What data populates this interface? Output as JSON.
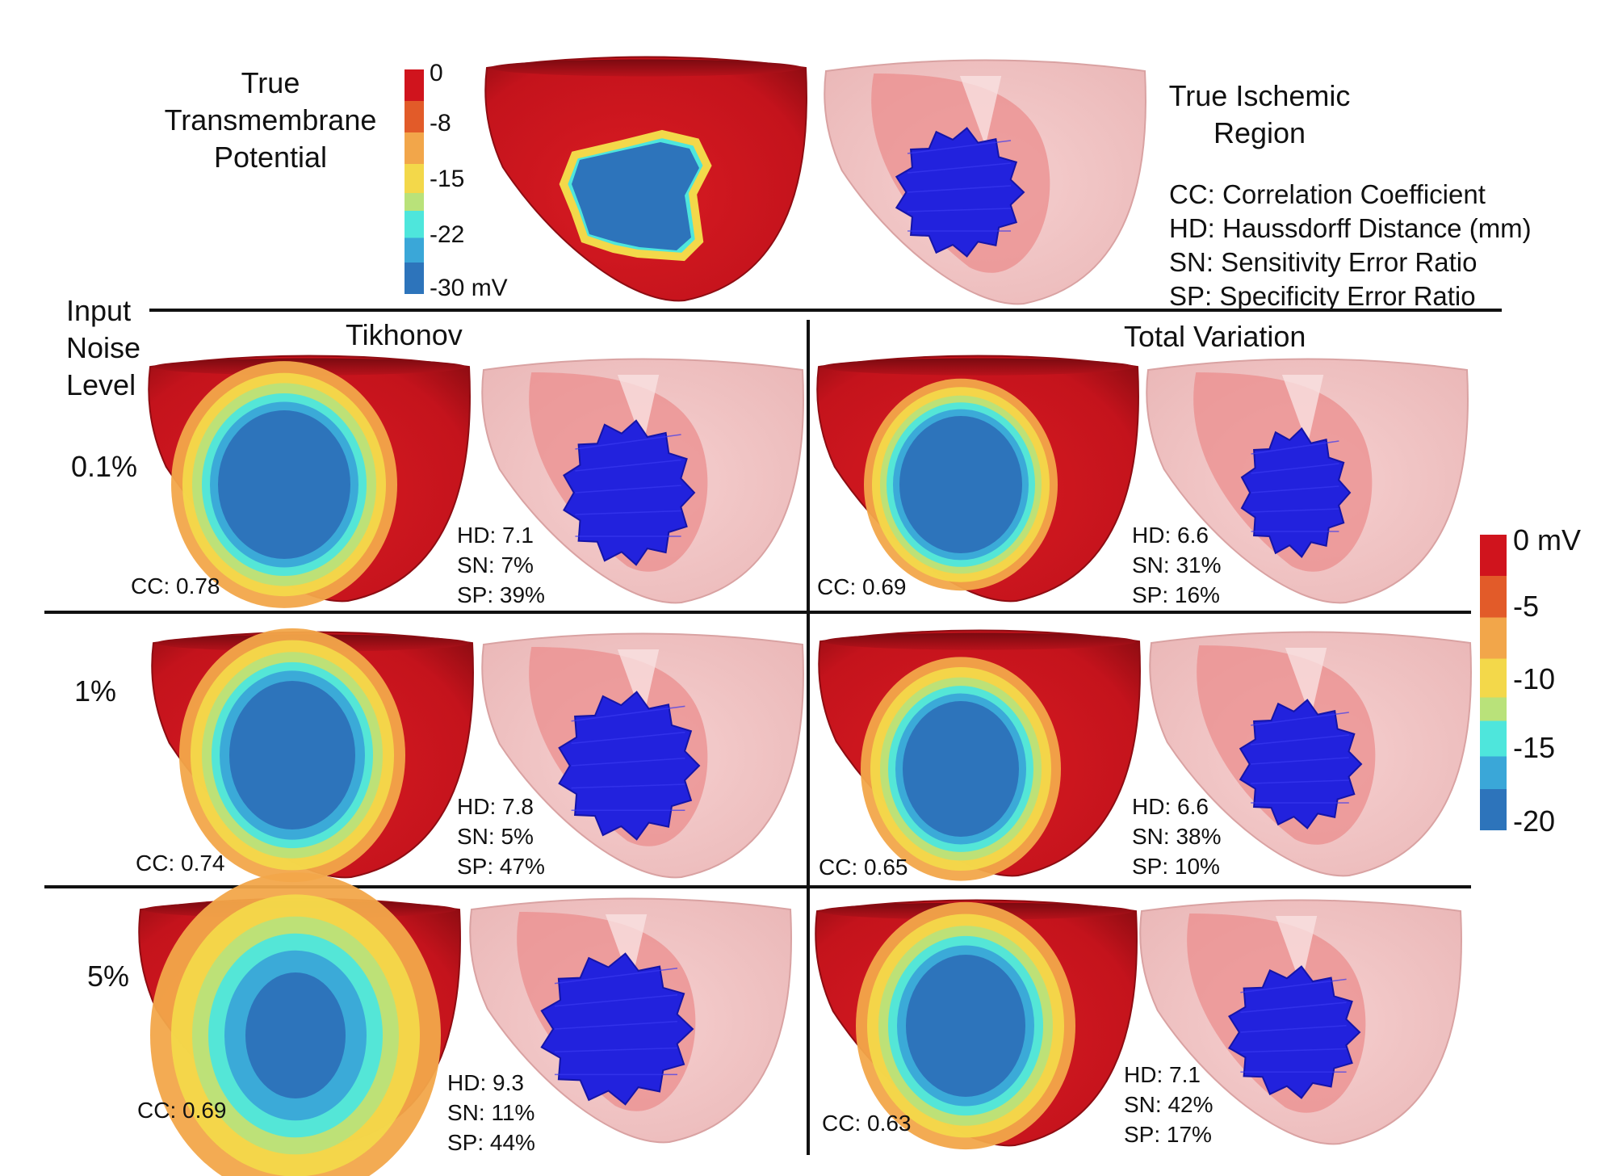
{
  "top": {
    "true_tmp_title": [
      "True",
      "Transmembrane",
      "Potential"
    ],
    "true_region_title": [
      "True Ischemic",
      "Region"
    ],
    "legend": [
      "CC: Correlation Coefficient",
      "HD: Haussdorff Distance (mm)",
      "SN: Sensitivity Error Ratio",
      "SP: Specificity Error Ratio"
    ],
    "colorbar_ticks": [
      "0",
      "-8",
      "-15",
      "-22",
      "-30 mV"
    ]
  },
  "row_header": [
    "Input",
    "Noise",
    "Level"
  ],
  "columns": {
    "left": "Tikhonov",
    "right": "Total Variation"
  },
  "noise_levels": [
    "0.1%",
    "1%",
    "5%"
  ],
  "results": {
    "tikhonov": [
      {
        "cc": "CC: 0.78",
        "hd": "HD: 7.1",
        "sn": "SN: 7%",
        "sp": "SP: 39%"
      },
      {
        "cc": "CC: 0.74",
        "hd": "HD: 7.8",
        "sn": "SN: 5%",
        "sp": "SP: 47%"
      },
      {
        "cc": "CC: 0.69",
        "hd": "HD: 9.3",
        "sn": "SN: 11%",
        "sp": "SP: 44%"
      }
    ],
    "tv": [
      {
        "cc": "CC: 0.69",
        "hd": "HD: 6.6",
        "sn": "SN: 31%",
        "sp": "SP: 16%"
      },
      {
        "cc": "CC: 0.65",
        "hd": "HD: 6.6",
        "sn": "SN: 38%",
        "sp": "SP: 10%"
      },
      {
        "cc": "CC: 0.63",
        "hd": "HD: 7.1",
        "sn": "SN: 42%",
        "sp": "SP: 17%"
      }
    ]
  },
  "right_colorbar_ticks": [
    "0 mV",
    "-5",
    "-10",
    "-15",
    "-20"
  ],
  "colors": {
    "heart_red": "#c8131d",
    "heart_dark": "#9e0e16",
    "scar_blue": "#2d74bb",
    "ischemic_blue": "#2222dd",
    "shell_pink": "#f3c4c4",
    "inner_pink": "#eb8e8e",
    "scale": [
      "#d0141d",
      "#e25b29",
      "#f2a64a",
      "#f3d84a",
      "#b9e27a",
      "#4ee6dc",
      "#3aa7d8",
      "#2d74bb"
    ]
  }
}
